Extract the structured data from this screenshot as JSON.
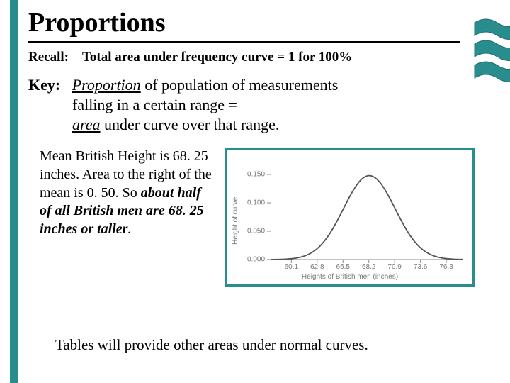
{
  "title": "Proportions",
  "recall": {
    "label": "Recall:",
    "text": "Total area under frequency curve = 1 for 100%"
  },
  "key": {
    "label": "Key:",
    "line1_prefix": "Proportion",
    "line1_rest": " of population of measurements",
    "line2": "falling in a certain range =",
    "line3_prefix": "area",
    "line3_rest": " under curve over that range."
  },
  "caption": {
    "p1": "Mean British Height is 68. 25 inches. Area to the right of the mean is 0. 50.  So ",
    "bold": "about half of all British men are 68. 25 inches or taller",
    "end": "."
  },
  "chart": {
    "type": "line",
    "curve_color": "#555555",
    "axis_color": "#8a8a8a",
    "tick_color": "#8a8a8a",
    "text_color": "#7a7a7a",
    "background_color": "#ffffff",
    "border_color": "#2a8d8d",
    "line_width": 1.8,
    "ylabel": "Height of curve",
    "xlabel": "Heights of British men (inches)",
    "xlim": [
      58.0,
      78.0
    ],
    "ylim": [
      0.0,
      0.18
    ],
    "yticks": [
      0.0,
      0.05,
      0.1,
      0.15
    ],
    "ytick_labels": [
      "0.000",
      "0.050",
      "0.100",
      "0.150"
    ],
    "xticks": [
      60.1,
      62.8,
      65.5,
      68.2,
      70.9,
      73.6,
      76.3
    ],
    "xtick_labels": [
      "60.1",
      "62.8",
      "65.5",
      "68.2",
      "70.9",
      "73.6",
      "76.3"
    ],
    "mean": 68.25,
    "sd": 2.7,
    "peak": 0.148,
    "tick_fontsize": 10,
    "label_fontsize": 10
  },
  "footer": "Tables will provide other areas under normal curves.",
  "wave": {
    "fill": "#2a8d8d",
    "stroke": "#1d6b6b"
  }
}
